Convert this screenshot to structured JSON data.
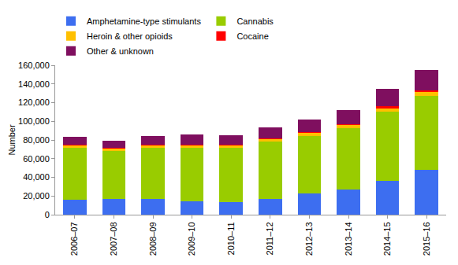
{
  "chart_data": {
    "type": "bar",
    "stacked": true,
    "grid": false,
    "legend": "top",
    "y_label": "Number",
    "categories": [
      "2006–07",
      "2007–08",
      "2008–09",
      "2009–10",
      "2010–11",
      "2011–12",
      "2012–13",
      "2013–14",
      "2014–15",
      "2015–16"
    ],
    "series": [
      {
        "name": "Amphetamine-type stimulants",
        "color": "#3d6ef0",
        "values": [
          16000,
          16500,
          17000,
          14500,
          13500,
          17000,
          23000,
          27000,
          36000,
          48000
        ]
      },
      {
        "name": "Cannabis",
        "color": "#99cc00",
        "values": [
          56000,
          52000,
          55000,
          57000,
          58500,
          61000,
          61500,
          66000,
          74000,
          79000
        ]
      },
      {
        "name": "Heroin & other opioids",
        "color": "#ffc000",
        "values": [
          2500,
          2500,
          2500,
          3000,
          2500,
          3000,
          3000,
          3000,
          4000,
          4000
        ]
      },
      {
        "name": "Cocaine",
        "color": "#ff0000",
        "values": [
          500,
          500,
          500,
          700,
          700,
          1000,
          1000,
          1200,
          2200,
          2300
        ]
      },
      {
        "name": "Other & unknown",
        "color": "#7f0f5f",
        "values": [
          8000,
          8000,
          9000,
          10800,
          9800,
          11500,
          13500,
          14800,
          18300,
          21700
        ]
      }
    ],
    "ylim": [
      0,
      160000
    ],
    "yticks": [
      0,
      {
        "value": 20000,
        "label": "20,000"
      },
      {
        "value": 40000,
        "label": "40,000"
      },
      {
        "value": 60000,
        "label": "60,000"
      },
      {
        "value": 80000,
        "label": "80,000"
      },
      {
        "value": 100000,
        "label": "100,000"
      },
      {
        "value": 120000,
        "label": "120,000"
      },
      {
        "value": 140000,
        "label": "140,000"
      },
      {
        "value": 160000,
        "label": "160,000"
      }
    ]
  }
}
